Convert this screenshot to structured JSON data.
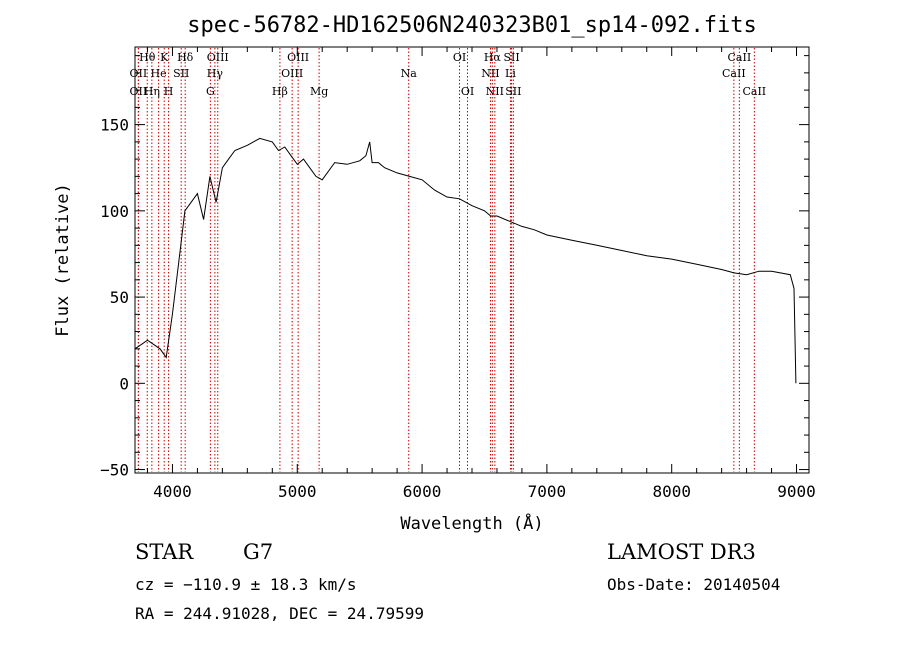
{
  "chart_data": {
    "type": "line",
    "title": "spec-56782-HD162506N240323B01_sp14-092.fits",
    "xlabel": "Wavelength (Å)",
    "ylabel": "Flux (relative)",
    "xlim": [
      3700,
      9100
    ],
    "ylim": [
      -52,
      195
    ],
    "x_ticks": [
      4000,
      5000,
      6000,
      7000,
      8000,
      9000
    ],
    "y_ticks": [
      -50,
      0,
      50,
      100,
      150
    ],
    "x_tick_labels": [
      "4000",
      "5000",
      "6000",
      "7000",
      "8000",
      "9000"
    ],
    "y_tick_labels": [
      "−50",
      "0",
      "50",
      "100",
      "150"
    ],
    "series": [
      {
        "name": "spectrum",
        "x": [
          3700,
          3800,
          3900,
          3950,
          4000,
          4050,
          4100,
          4150,
          4200,
          4250,
          4300,
          4350,
          4400,
          4450,
          4500,
          4600,
          4700,
          4800,
          4850,
          4900,
          4950,
          5000,
          5050,
          5100,
          5150,
          5200,
          5300,
          5400,
          5500,
          5550,
          5580,
          5600,
          5650,
          5700,
          5800,
          5900,
          6000,
          6100,
          6200,
          6300,
          6400,
          6500,
          6550,
          6600,
          6700,
          6800,
          6900,
          7000,
          7200,
          7400,
          7600,
          7800,
          8000,
          8200,
          8400,
          8500,
          8600,
          8700,
          8800,
          8950,
          8980,
          8995
        ],
        "y": [
          20,
          25,
          20,
          15,
          40,
          70,
          100,
          105,
          110,
          95,
          120,
          105,
          125,
          130,
          135,
          138,
          142,
          140,
          135,
          137,
          132,
          127,
          130,
          125,
          120,
          118,
          128,
          127,
          129,
          132,
          140,
          128,
          128,
          125,
          122,
          120,
          118,
          112,
          108,
          107,
          103,
          100,
          97,
          97,
          94,
          91,
          89,
          86,
          83,
          80,
          77,
          74,
          72,
          69,
          66,
          64,
          63,
          65,
          65,
          63,
          55,
          0
        ]
      }
    ],
    "spectral_lines": [
      {
        "label": "Hθ",
        "x": 3798,
        "row": 1
      },
      {
        "label": "OII",
        "x": 3727,
        "row": 2
      },
      {
        "label": "OII",
        "x": 3727,
        "row": 3
      },
      {
        "label": "He",
        "x": 3889,
        "row": 2
      },
      {
        "label": "Hη",
        "x": 3835,
        "row": 3
      },
      {
        "label": "K",
        "x": 3934,
        "row": 1
      },
      {
        "label": "SII",
        "x": 4070,
        "row": 2
      },
      {
        "label": "H",
        "x": 3969,
        "row": 3
      },
      {
        "label": "Hδ",
        "x": 4102,
        "row": 1
      },
      {
        "label": "OIII",
        "x": 4363,
        "row": 1
      },
      {
        "label": "Hγ",
        "x": 4340,
        "row": 2
      },
      {
        "label": "G",
        "x": 4304,
        "row": 3
      },
      {
        "label": "OIII",
        "x": 5007,
        "row": 1
      },
      {
        "label": "OIII",
        "x": 4959,
        "row": 2
      },
      {
        "label": "Hβ",
        "x": 4861,
        "row": 3
      },
      {
        "label": "Mg",
        "x": 5175,
        "row": 3
      },
      {
        "label": "Na",
        "x": 5893,
        "row": 2
      },
      {
        "label": "OI",
        "x": 6300,
        "row": 1
      },
      {
        "label": "OI",
        "x": 6364,
        "row": 3
      },
      {
        "label": "Hα",
        "x": 6563,
        "row": 1
      },
      {
        "label": "NII",
        "x": 6548,
        "row": 2
      },
      {
        "label": "NII",
        "x": 6583,
        "row": 3
      },
      {
        "label": "SII",
        "x": 6717,
        "row": 1
      },
      {
        "label": "Li",
        "x": 6708,
        "row": 2
      },
      {
        "label": "SII",
        "x": 6731,
        "row": 3
      },
      {
        "label": "CaII",
        "x": 8542,
        "row": 1
      },
      {
        "label": "CaII",
        "x": 8498,
        "row": 2
      },
      {
        "label": "CaII",
        "x": 8662,
        "row": 3
      }
    ]
  },
  "info": {
    "class_label": "STAR",
    "subclass_label": "G7",
    "survey_label": "LAMOST DR3",
    "cz_text": "cz = −110.9 ± 18.3 km/s",
    "obsdate_text": "Obs-Date: 20140504",
    "radec_text": "RA = 244.91028, DEC =  24.79599"
  }
}
